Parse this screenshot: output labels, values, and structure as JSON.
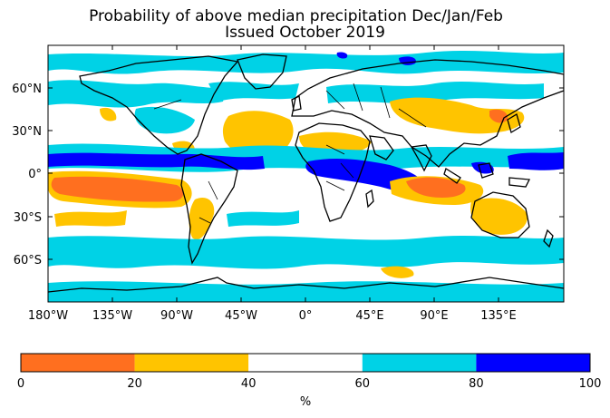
{
  "title": {
    "line1": "Probability of above median precipitation Dec/Jan/Feb",
    "line2": "Issued October 2019"
  },
  "map": {
    "projection": "equirectangular",
    "lon_range": [
      -180,
      180
    ],
    "lat_range": [
      -90,
      90
    ],
    "x_ticks": [
      "180°W",
      "135°W",
      "90°W",
      "45°W",
      "0°",
      "45°E",
      "90°E",
      "135°E"
    ],
    "y_ticks": [
      "60°N",
      "30°N",
      "0°",
      "30°S",
      "60°S"
    ]
  },
  "colorbar": {
    "unit_label": "%",
    "ticks": [
      "0",
      "20",
      "40",
      "60",
      "80",
      "100"
    ],
    "bins": [
      {
        "range": [
          0,
          20
        ],
        "color": "#ff6f1f"
      },
      {
        "range": [
          20,
          40
        ],
        "color": "#ffc400"
      },
      {
        "range": [
          40,
          60
        ],
        "color": "#ffffff"
      },
      {
        "range": [
          60,
          80
        ],
        "color": "#00d2e6"
      },
      {
        "range": [
          80,
          100
        ],
        "color": "#0000ff"
      }
    ]
  }
}
